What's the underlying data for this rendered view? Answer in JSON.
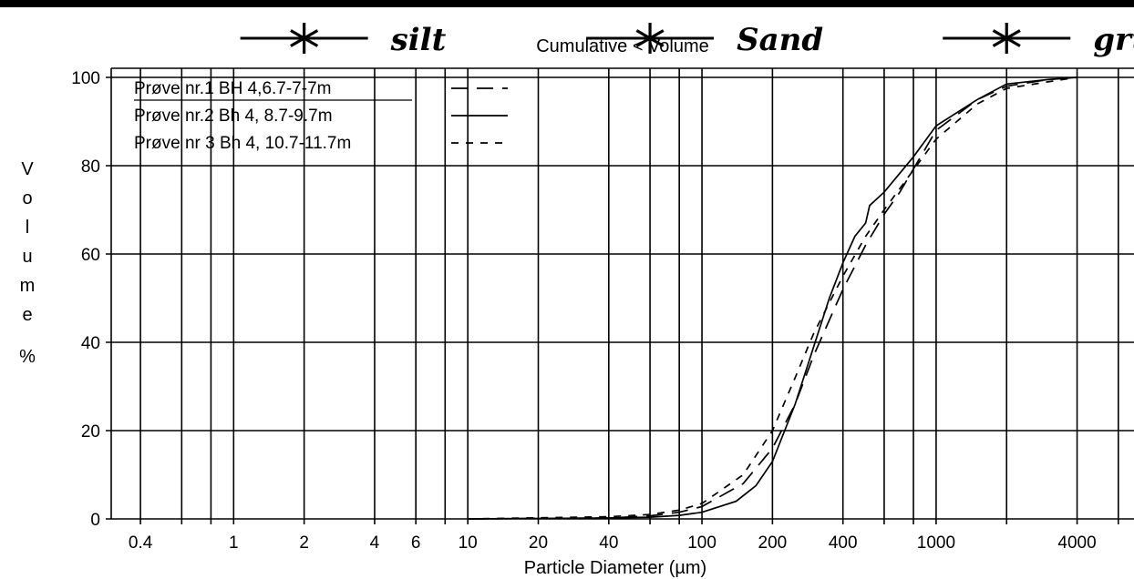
{
  "chart_data": {
    "type": "line",
    "title": "Cumulative < Volume",
    "xlabel": "Particle Diameter (µm)",
    "ylabel": "Volume %",
    "x_scale": "log",
    "xlim": [
      0.3,
      7000
    ],
    "ylim": [
      0,
      100
    ],
    "grid": true,
    "legend_position": "top-left",
    "x_tick_labels": [
      "0.4",
      "1",
      "2",
      "4",
      "6",
      "10",
      "20",
      "40",
      "100",
      "200",
      "400",
      "1000",
      "4000"
    ],
    "y_tick_labels": [
      "0",
      "20",
      "40",
      "60",
      "80",
      "100"
    ],
    "x_ticks": [
      0.4,
      1,
      2,
      4,
      6,
      10,
      20,
      40,
      100,
      200,
      400,
      1000,
      4000
    ],
    "y_ticks": [
      0,
      20,
      40,
      60,
      80,
      100
    ],
    "x_gridlines": [
      0.4,
      0.6,
      0.8,
      1,
      2,
      4,
      6,
      8,
      10,
      20,
      40,
      60,
      80,
      100,
      200,
      400,
      600,
      800,
      1000,
      2000,
      4000,
      6000
    ],
    "annotations": [
      {
        "text": "silt",
        "at_x": 2,
        "at_y": 109
      },
      {
        "text": "Sand",
        "at_x": 60,
        "at_y": 109
      },
      {
        "text": "grus",
        "at_x": 2000,
        "at_y": 109
      }
    ],
    "series": [
      {
        "name": "Prøve nr.1 BH 4,6.7-7-7m",
        "dash": "18,10",
        "x": [
          10,
          40,
          60,
          80,
          100,
          150,
          200,
          250,
          300,
          400,
          500,
          600,
          700,
          1000,
          1500,
          2000,
          3000,
          4000
        ],
        "y": [
          0,
          0.2,
          0.7,
          1.5,
          2.8,
          8,
          16,
          26,
          37,
          52,
          62,
          69,
          74,
          88,
          95,
          98,
          99.5,
          100
        ]
      },
      {
        "name": "Prøve nr.2 Bh 4, 8.7-9.7m",
        "dash": "",
        "x": [
          10,
          40,
          60,
          80,
          100,
          140,
          170,
          200,
          250,
          300,
          350,
          400,
          450,
          500,
          520,
          600,
          800,
          1000,
          1500,
          2000,
          3000,
          4000
        ],
        "y": [
          0,
          0.2,
          0.4,
          0.8,
          1.5,
          4,
          7.5,
          13,
          26,
          39,
          50,
          58,
          64,
          67,
          71,
          74,
          82,
          89,
          95,
          98.5,
          99.5,
          100
        ]
      },
      {
        "name": "Prøve nr 3 Bh 4, 10.7-11.7m",
        "dash": "8,8",
        "x": [
          10,
          40,
          60,
          80,
          100,
          150,
          200,
          250,
          300,
          400,
          500,
          600,
          800,
          1000,
          1500,
          2000,
          3000,
          4000
        ],
        "y": [
          0,
          0.5,
          1,
          2,
          3.5,
          10,
          20,
          32,
          42,
          55,
          64,
          70,
          79,
          86,
          94,
          97.5,
          99,
          100
        ]
      }
    ]
  }
}
